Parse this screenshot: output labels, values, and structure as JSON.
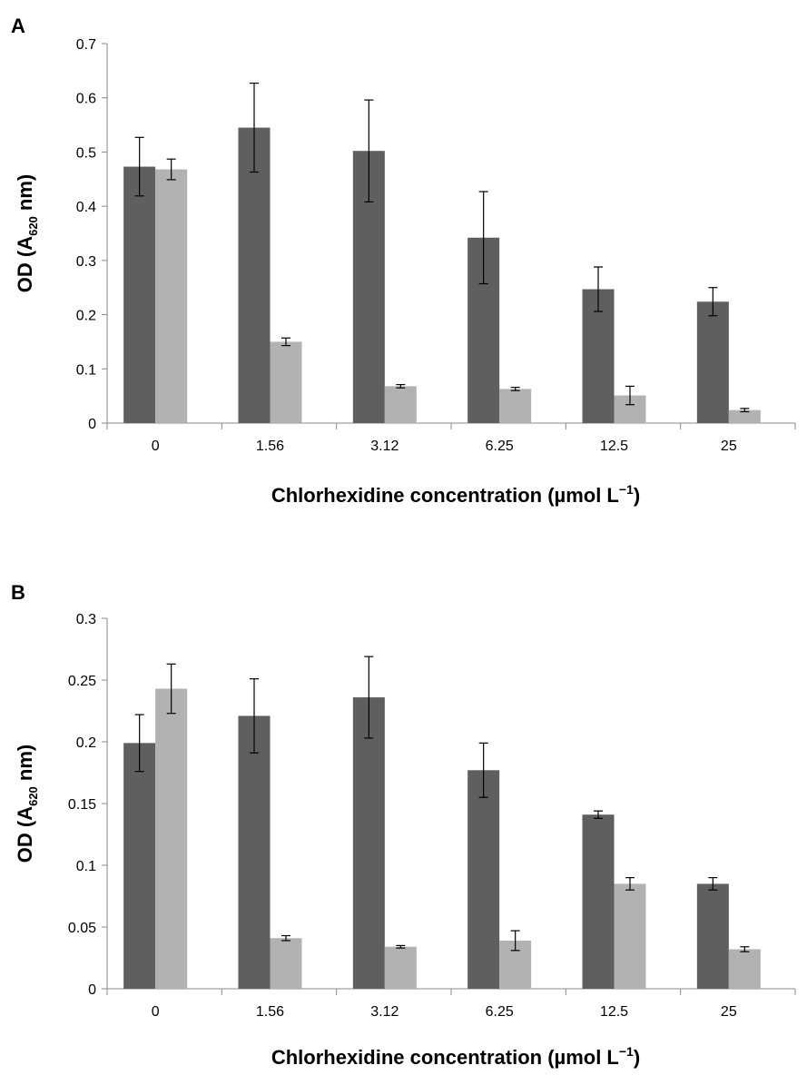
{
  "chart_data": [
    {
      "panel_label": "A",
      "type": "bar",
      "categories": [
        "0",
        "1.56",
        "3.12",
        "6.25",
        "12.5",
        "25"
      ],
      "series": [
        {
          "color": "#5f5f5f",
          "values": [
            0.473,
            0.545,
            0.502,
            0.342,
            0.247,
            0.224
          ],
          "error": [
            0.054,
            0.082,
            0.094,
            0.085,
            0.041,
            0.026
          ]
        },
        {
          "color": "#b2b2b2",
          "values": [
            0.468,
            0.15,
            0.068,
            0.063,
            0.051,
            0.024
          ],
          "error": [
            0.019,
            0.007,
            0.003,
            0.003,
            0.017,
            0.003
          ]
        }
      ],
      "xlabel": "Chlorhexidine concentration (µmol L",
      "xlabel_sup": "−1",
      "xlabel_end": ")",
      "ylabel": "OD (A",
      "ylabel_sub": "620",
      "ylabel_end": " nm)",
      "ylim": [
        0,
        0.7
      ],
      "yticks": [
        "0",
        "0.1",
        "0.2",
        "0.3",
        "0.4",
        "0.5",
        "0.6",
        "0.7"
      ],
      "grid": false,
      "legend": "none"
    },
    {
      "panel_label": "B",
      "type": "bar",
      "categories": [
        "0",
        "1.56",
        "3.12",
        "6.25",
        "12.5",
        "25"
      ],
      "series": [
        {
          "color": "#5f5f5f",
          "values": [
            0.199,
            0.221,
            0.236,
            0.177,
            0.141,
            0.085
          ],
          "error": [
            0.023,
            0.03,
            0.033,
            0.022,
            0.003,
            0.005
          ]
        },
        {
          "color": "#b2b2b2",
          "values": [
            0.243,
            0.041,
            0.034,
            0.039,
            0.085,
            0.032
          ],
          "error": [
            0.02,
            0.002,
            0.001,
            0.008,
            0.005,
            0.002
          ]
        }
      ],
      "xlabel": "Chlorhexidine concentration (µmol L",
      "xlabel_sup": "−1",
      "xlabel_end": ")",
      "ylabel": "OD (A",
      "ylabel_sub": "620",
      "ylabel_end": " nm)",
      "ylim": [
        0,
        0.3
      ],
      "yticks": [
        "0",
        "0.05",
        "0.1",
        "0.15",
        "0.2",
        "0.25",
        "0.3"
      ],
      "grid": false,
      "legend": "none"
    }
  ]
}
